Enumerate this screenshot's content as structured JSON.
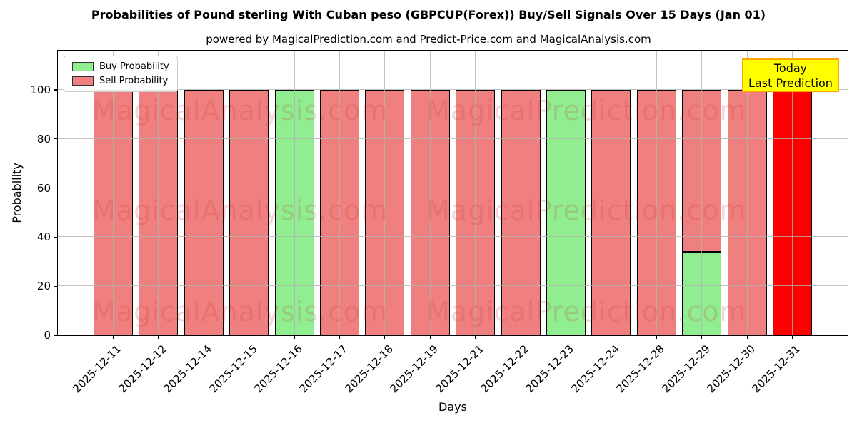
{
  "title": "Probabilities of Pound sterling With Cuban peso (GBPCUP(Forex)) Buy/Sell Signals Over 15 Days (Jan 01)",
  "subtitle": "powered by MagicalPrediction.com and Predict-Price.com and MagicalAnalysis.com",
  "legend": {
    "items": [
      {
        "label": "Buy Probability",
        "color": "#90ee90"
      },
      {
        "label": "Sell Probability",
        "color": "#f08080"
      }
    ]
  },
  "annotation_box": {
    "line1": "Today",
    "line2": "Last Prediction",
    "bg_color": "#ffff00",
    "border_color": "#ffa500"
  },
  "watermarks": {
    "left": "MagicalAnalysis.com",
    "right": "MagicalPrediction.com"
  },
  "chart_data": {
    "type": "bar",
    "stacked": true,
    "title": "Probabilities of Pound sterling With Cuban peso (GBPCUP(Forex)) Buy/Sell Signals Over 15 Days (Jan 01)",
    "xlabel": "Days",
    "ylabel": "Probability",
    "ylim": [
      0,
      116
    ],
    "yticks": [
      0,
      20,
      40,
      60,
      80,
      100
    ],
    "grid": true,
    "legend_position": "upper left",
    "dashed_line_y": 110,
    "categories": [
      "2025-12-11",
      "2025-12-12",
      "2025-12-14",
      "2025-12-15",
      "2025-12-16",
      "2025-12-17",
      "2025-12-18",
      "2025-12-19",
      "2025-12-21",
      "2025-12-22",
      "2025-12-23",
      "2025-12-24",
      "2025-12-28",
      "2025-12-29",
      "2025-12-30",
      "2025-12-31"
    ],
    "series": [
      {
        "name": "Buy Probability",
        "color": "#90ee90",
        "values": [
          0,
          0,
          0,
          0,
          100,
          0,
          0,
          0,
          0,
          0,
          100,
          0,
          0,
          34,
          0,
          0
        ]
      },
      {
        "name": "Sell Probability",
        "color": "#f08080",
        "values": [
          100,
          100,
          100,
          100,
          0,
          100,
          100,
          100,
          100,
          100,
          0,
          100,
          100,
          66,
          100,
          0
        ]
      }
    ],
    "today_bar": {
      "category": "2025-12-31",
      "index": 15,
      "value": 100,
      "color": "#ff0000",
      "meaning": "Sell Probability"
    }
  }
}
